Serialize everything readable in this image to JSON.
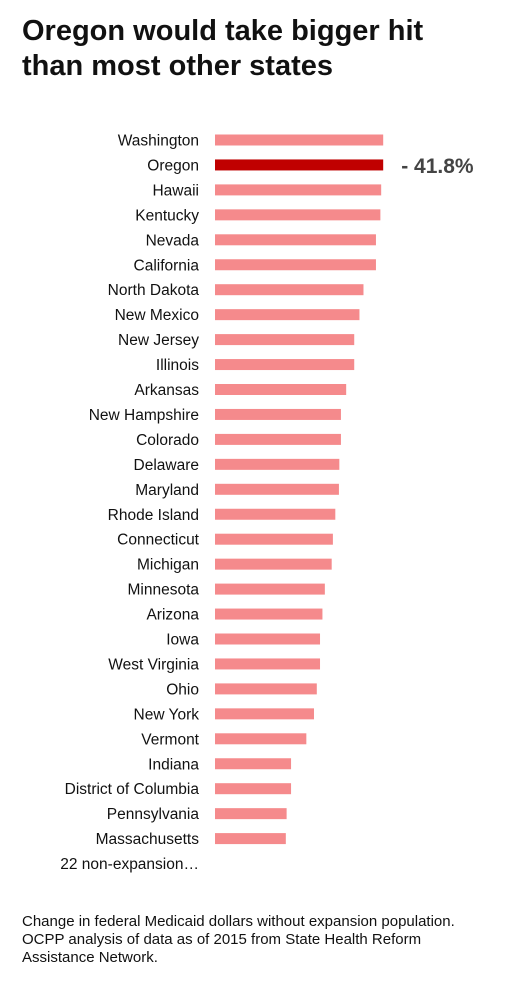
{
  "header": {
    "title": "Oregon would take bigger hit than most other states"
  },
  "chart_data": {
    "type": "bar",
    "orientation": "horizontal",
    "categories": [
      "Washington",
      "Oregon",
      "Hawaii",
      "Kentucky",
      "Nevada",
      "California",
      "North Dakota",
      "New Mexico",
      "New Jersey",
      "Illinois",
      "Arkansas",
      "New Hampshire",
      "Colorado",
      "Delaware",
      "Maryland",
      "Rhode Island",
      "Connecticut",
      "Michigan",
      "Minnesota",
      "Arizona",
      "Iowa",
      "West Virginia",
      "Ohio",
      "New York",
      "Vermont",
      "Indiana",
      "District of Columbia",
      "Pennsylvania",
      "Massachusetts",
      "22 non-expansion…"
    ],
    "values": [
      41.8,
      41.8,
      41.3,
      41.1,
      40.0,
      40.0,
      36.9,
      35.9,
      34.6,
      34.6,
      32.6,
      31.3,
      31.3,
      30.9,
      30.8,
      29.9,
      29.3,
      29.0,
      27.3,
      26.7,
      26.1,
      26.1,
      25.3,
      24.6,
      22.7,
      18.9,
      18.9,
      17.8,
      17.6,
      0
    ],
    "highlight_category": "Oregon",
    "annotation": "- 41.8%",
    "colors": {
      "bar": "#f58a8c",
      "highlight": "#c00000"
    },
    "xlim": [
      0,
      42
    ],
    "title": "Oregon would take bigger hit than most other states",
    "xlabel": "",
    "ylabel": "",
    "grid": false,
    "legend": "none"
  },
  "footnote": {
    "line1": "Change in federal Medicaid dollars without expansion population.",
    "line2": "OCPP analysis of data as of 2015 from State Health Reform Assistance Network."
  }
}
